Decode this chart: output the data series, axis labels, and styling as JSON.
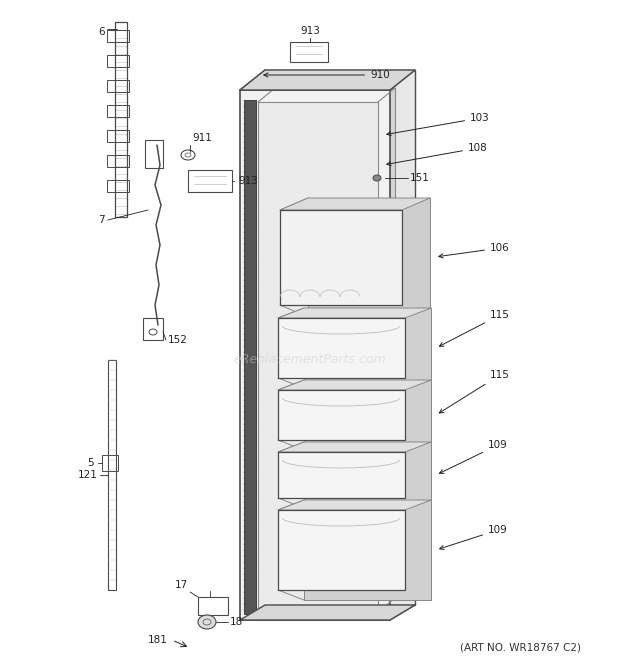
{
  "art_no": "(ART NO. WR18767 C2)",
  "watermark": "eReplacementParts.com",
  "bg_color": "#ffffff",
  "fig_width": 6.2,
  "fig_height": 6.61,
  "dpi": 100,
  "line_color": "#4a4a4a",
  "light_gray": "#bbbbbb",
  "mid_gray": "#888888",
  "label_color": "#222222",
  "label_fontsize": 7.5,
  "watermark_color": "#cccccc",
  "watermark_alpha": 0.5,
  "watermark_fontsize": 9
}
